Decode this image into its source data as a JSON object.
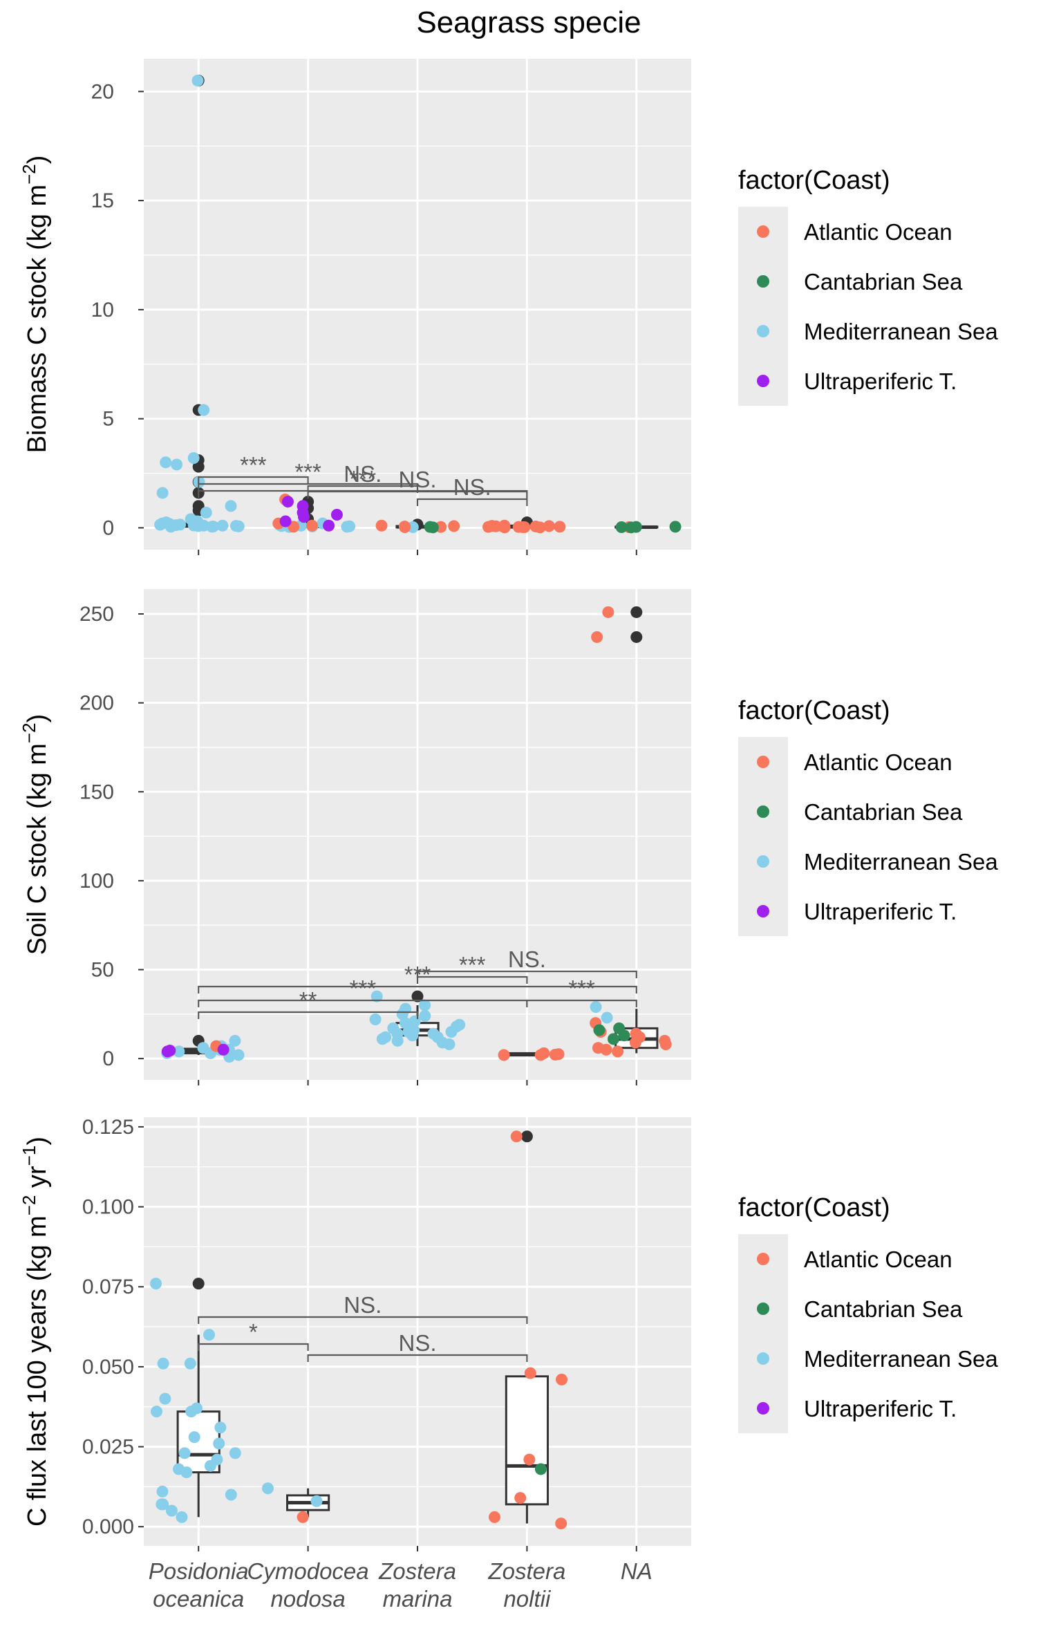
{
  "figure_title": "Seagrass specie",
  "colors": {
    "Atlantic Ocean": "#f8765c",
    "Cantabrian Sea": "#2e8b57",
    "Mediterranean Sea": "#87ceeb",
    "Ultraperiferic T.": "#a020f0",
    "outlier": "#333333"
  },
  "legend": {
    "title": "factor(Coast)",
    "items": [
      "Atlantic Ocean",
      "Cantabrian Sea",
      "Mediterranean Sea",
      "Ultraperiferic T."
    ]
  },
  "x_categories": [
    [
      "Posidonia",
      "oceanica"
    ],
    [
      "Cymodocea",
      "nodosa"
    ],
    [
      "Zostera",
      "marina"
    ],
    [
      "Zostera",
      "noltii"
    ],
    [
      "NA"
    ]
  ],
  "chart_data": [
    {
      "type": "box",
      "ylabel": "Biomass C stock (kg m^-2)",
      "ylim": [
        -1,
        21.5
      ],
      "yticks": [
        0,
        5,
        10,
        15,
        20
      ],
      "categories": [
        "Posidonia oceanica",
        "Cymodocea nodosa",
        "Zostera marina",
        "Zostera noltii",
        "NA"
      ],
      "boxes": [
        {
          "q1": 0.05,
          "median": 0.1,
          "q3": 0.2,
          "low": 0.0,
          "high": 0.4
        },
        {
          "q1": 0.03,
          "median": 0.06,
          "q3": 0.15,
          "low": 0.0,
          "high": 0.3
        },
        {
          "q1": 0.02,
          "median": 0.04,
          "q3": 0.08,
          "low": 0.0,
          "high": 0.15
        },
        {
          "q1": 0.02,
          "median": 0.04,
          "q3": 0.1,
          "low": 0.0,
          "high": 0.2
        },
        {
          "q1": 0.02,
          "median": 0.03,
          "q3": 0.05,
          "low": 0.01,
          "high": 0.07
        }
      ],
      "outliers": [
        [
          0,
          20.5
        ],
        [
          0,
          5.4
        ],
        [
          0,
          3.1
        ],
        [
          0,
          2.8
        ],
        [
          0,
          2.1
        ],
        [
          0,
          1.6
        ],
        [
          0,
          1.0
        ],
        [
          0,
          0.8
        ],
        [
          1,
          1.2
        ],
        [
          1,
          0.9
        ],
        [
          1,
          0.4
        ],
        [
          2,
          0.15
        ],
        [
          3,
          0.25
        ]
      ],
      "points": {
        "Mediterranean Sea": [
          [
            0,
            20.5
          ],
          [
            0,
            5.4
          ],
          [
            0,
            3.0
          ],
          [
            0,
            2.9
          ],
          [
            0,
            3.2
          ],
          [
            0,
            2.1
          ],
          [
            0,
            1.6
          ],
          [
            0,
            1.0
          ],
          [
            0,
            0.7
          ],
          [
            0,
            0.4
          ],
          [
            0,
            0.15
          ],
          [
            0,
            0.1
          ],
          [
            0,
            0.05
          ],
          [
            0,
            0.2
          ],
          [
            0,
            0.08
          ],
          [
            0,
            0.12
          ],
          [
            0,
            0.06
          ],
          [
            0,
            0.18
          ],
          [
            0,
            0.1
          ],
          [
            0,
            0.3
          ],
          [
            0,
            0.05
          ],
          [
            0,
            0.14
          ],
          [
            0,
            0.09
          ],
          [
            0,
            0.07
          ],
          [
            0,
            0.25
          ],
          [
            0,
            0.11
          ],
          [
            1,
            0.05
          ],
          [
            1,
            0.08
          ],
          [
            1,
            0.1
          ],
          [
            1,
            0.06
          ],
          [
            1,
            0.2
          ],
          [
            1,
            0.04
          ],
          [
            1,
            0.12
          ],
          [
            1,
            0.07
          ],
          [
            2,
            0.03
          ]
        ],
        "Atlantic Ocean": [
          [
            1,
            1.3
          ],
          [
            1,
            0.1
          ],
          [
            1,
            0.05
          ],
          [
            1,
            0.2
          ],
          [
            2,
            0.04
          ],
          [
            2,
            0.03
          ],
          [
            2,
            0.06
          ],
          [
            2,
            0.1
          ],
          [
            2,
            0.08
          ],
          [
            3,
            0.02
          ],
          [
            3,
            0.05
          ],
          [
            3,
            0.03
          ],
          [
            3,
            0.1
          ],
          [
            3,
            0.06
          ],
          [
            3,
            0.04
          ],
          [
            3,
            0.08
          ],
          [
            3,
            0.02
          ],
          [
            3,
            0.07
          ],
          [
            3,
            0.05
          ],
          [
            3,
            0.03
          ],
          [
            3,
            0.09
          ],
          [
            3,
            0.04
          ],
          [
            4,
            0.03
          ]
        ],
        "Cantabrian Sea": [
          [
            2,
            0.02
          ],
          [
            2,
            0.04
          ],
          [
            4,
            0.05
          ],
          [
            4,
            0.03
          ],
          [
            4,
            0.02
          ],
          [
            4,
            0.04
          ]
        ],
        "Ultraperiferic T.": [
          [
            1,
            0.7
          ],
          [
            1,
            0.6
          ],
          [
            1,
            0.5
          ],
          [
            1,
            1.0
          ],
          [
            1,
            1.2
          ],
          [
            1,
            0.3
          ],
          [
            1,
            0.1
          ]
        ]
      },
      "comparisons": [
        {
          "from": 0,
          "to": 1,
          "label": "***"
        },
        {
          "from": 0,
          "to": 2,
          "label": "***"
        },
        {
          "from": 0,
          "to": 3,
          "label": "***"
        },
        {
          "from": 1,
          "to": 2,
          "label": "NS."
        },
        {
          "from": 1,
          "to": 3,
          "label": "NS."
        },
        {
          "from": 2,
          "to": 3,
          "label": "NS."
        }
      ]
    },
    {
      "type": "box",
      "ylabel": "Soil C stock (kg m^-2)",
      "ylim": [
        -12,
        264
      ],
      "yticks": [
        0,
        50,
        100,
        150,
        200,
        250
      ],
      "categories": [
        "Posidonia oceanica",
        "Cymodocea nodosa",
        "Zostera marina",
        "Zostera noltii",
        "NA"
      ],
      "boxes": [
        {
          "q1": 3,
          "median": 4,
          "q3": 5.5,
          "low": 2,
          "high": 7
        },
        null,
        {
          "q1": 13,
          "median": 16,
          "q3": 20,
          "low": 7,
          "high": 30
        },
        {
          "q1": 1.8,
          "median": 2.2,
          "q3": 3,
          "low": 1.5,
          "high": 3.5
        },
        {
          "q1": 6,
          "median": 11,
          "q3": 17,
          "low": 3,
          "high": 28
        }
      ],
      "outliers": [
        [
          0,
          10
        ],
        [
          2,
          35
        ],
        [
          4,
          251
        ],
        [
          4,
          237
        ]
      ],
      "points": {
        "Mediterranean Sea": [
          [
            0,
            3
          ],
          [
            0,
            4
          ],
          [
            0,
            7
          ],
          [
            0,
            5
          ],
          [
            0,
            2
          ],
          [
            0,
            10
          ],
          [
            0,
            1
          ],
          [
            0,
            5
          ],
          [
            0,
            3
          ],
          [
            0,
            6
          ],
          [
            2,
            35
          ],
          [
            2,
            25
          ],
          [
            2,
            20
          ],
          [
            2,
            17
          ],
          [
            2,
            15
          ],
          [
            2,
            14
          ],
          [
            2,
            12
          ],
          [
            2,
            10
          ],
          [
            2,
            18
          ],
          [
            2,
            22
          ],
          [
            2,
            28
          ],
          [
            2,
            30
          ],
          [
            2,
            13
          ],
          [
            2,
            11
          ],
          [
            2,
            19
          ],
          [
            2,
            16
          ],
          [
            2,
            8
          ],
          [
            2,
            24
          ],
          [
            2,
            21
          ],
          [
            2,
            12
          ],
          [
            2,
            9
          ],
          [
            2,
            15
          ],
          [
            2,
            14
          ],
          [
            4,
            29
          ],
          [
            4,
            23
          ]
        ],
        "Atlantic Ocean": [
          [
            0,
            7
          ],
          [
            3,
            3
          ],
          [
            3,
            2
          ],
          [
            3,
            2.5
          ],
          [
            3,
            2
          ],
          [
            3,
            2.2
          ],
          [
            4,
            251
          ],
          [
            4,
            237
          ],
          [
            4,
            15
          ],
          [
            4,
            20
          ],
          [
            4,
            12
          ],
          [
            4,
            10
          ],
          [
            4,
            8
          ],
          [
            4,
            5
          ],
          [
            4,
            14
          ],
          [
            4,
            6
          ],
          [
            4,
            4
          ],
          [
            4,
            9
          ]
        ],
        "Cantabrian Sea": [
          [
            4,
            16
          ],
          [
            4,
            13
          ],
          [
            4,
            11
          ],
          [
            4,
            17
          ]
        ],
        "Ultraperiferic T.": [
          [
            0,
            5
          ],
          [
            0,
            4
          ],
          [
            0,
            4.5
          ]
        ]
      },
      "comparisons": [
        {
          "from": 0,
          "to": 2,
          "label": "**"
        },
        {
          "from": 0,
          "to": 3,
          "label": "***"
        },
        {
          "from": 0,
          "to": 4,
          "label": "***"
        },
        {
          "from": 2,
          "to": 3,
          "label": "***"
        },
        {
          "from": 2,
          "to": 4,
          "label": "NS."
        },
        {
          "from": 3,
          "to": 4,
          "label": "***"
        }
      ]
    },
    {
      "type": "box",
      "ylabel": "C flux last 100 years (kg m^-2 yr^-1)",
      "ylim": [
        -0.006,
        0.128
      ],
      "yticks": [
        0.0,
        0.025,
        0.05,
        0.075,
        0.1,
        0.125
      ],
      "ytick_labels": [
        "0.000",
        "0.025",
        "0.050",
        "0.075",
        "0.100",
        "0.125"
      ],
      "categories": [
        "Posidonia oceanica",
        "Cymodocea nodosa",
        "Zostera marina",
        "Zostera noltii",
        "NA"
      ],
      "boxes": [
        {
          "q1": 0.017,
          "median": 0.0225,
          "q3": 0.036,
          "low": 0.003,
          "high": 0.06
        },
        {
          "q1": 0.0052,
          "median": 0.0075,
          "q3": 0.0098,
          "low": 0.003,
          "high": 0.012
        },
        null,
        {
          "q1": 0.007,
          "median": 0.019,
          "q3": 0.047,
          "low": 0.001,
          "high": 0.048
        },
        null
      ],
      "outliers": [
        [
          0,
          0.076
        ],
        [
          3,
          0.122
        ]
      ],
      "points": {
        "Mediterranean Sea": [
          [
            0,
            0.076
          ],
          [
            0,
            0.06
          ],
          [
            0,
            0.051
          ],
          [
            0,
            0.051
          ],
          [
            0,
            0.04
          ],
          [
            0,
            0.037
          ],
          [
            0,
            0.036
          ],
          [
            0,
            0.036
          ],
          [
            0,
            0.031
          ],
          [
            0,
            0.028
          ],
          [
            0,
            0.026
          ],
          [
            0,
            0.023
          ],
          [
            0,
            0.023
          ],
          [
            0,
            0.021
          ],
          [
            0,
            0.019
          ],
          [
            0,
            0.018
          ],
          [
            0,
            0.017
          ],
          [
            0,
            0.011
          ],
          [
            0,
            0.01
          ],
          [
            0,
            0.007
          ],
          [
            0,
            0.007
          ],
          [
            0,
            0.005
          ],
          [
            0,
            0.003
          ],
          [
            1,
            0.012
          ],
          [
            1,
            0.008
          ]
        ],
        "Atlantic Ocean": [
          [
            1,
            0.003
          ],
          [
            3,
            0.122
          ],
          [
            3,
            0.048
          ],
          [
            3,
            0.046
          ],
          [
            3,
            0.021
          ],
          [
            3,
            0.009
          ],
          [
            3,
            0.003
          ],
          [
            3,
            0.001
          ]
        ],
        "Cantabrian Sea": [
          [
            3,
            0.018
          ]
        ],
        "Ultraperiferic T.": []
      },
      "comparisons": [
        {
          "from": 0,
          "to": 1,
          "label": "*"
        },
        {
          "from": 0,
          "to": 3,
          "label": "NS."
        },
        {
          "from": 1,
          "to": 3,
          "label": "NS."
        }
      ]
    }
  ]
}
